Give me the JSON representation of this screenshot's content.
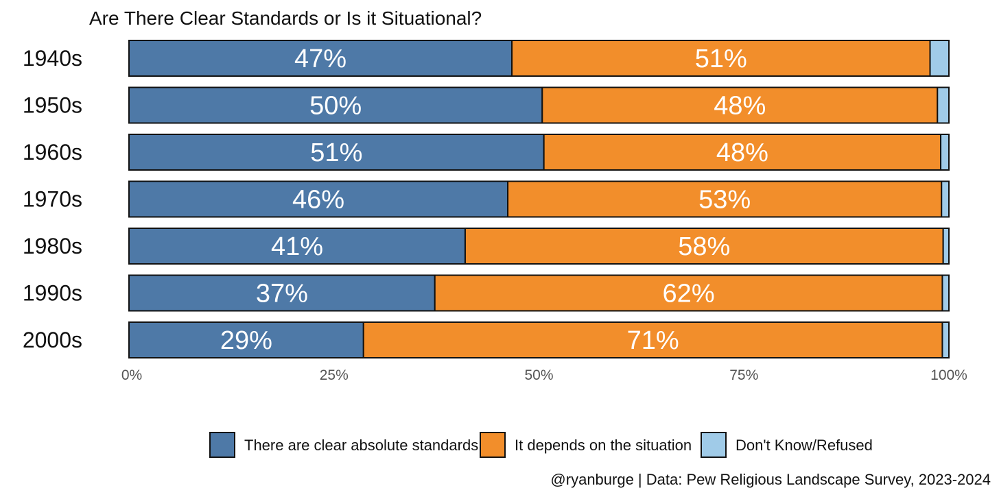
{
  "chart_data": {
    "type": "bar",
    "orientation": "horizontal",
    "stacked": true,
    "title": "Are There Clear Standards or Is it Situational?",
    "categories": [
      "1940s",
      "1950s",
      "1960s",
      "1970s",
      "1980s",
      "1990s",
      "2000s"
    ],
    "series": [
      {
        "name": "There are clear absolute standards",
        "color": "#4e79a7",
        "values": [
          0.467,
          0.504,
          0.506,
          0.462,
          0.41,
          0.373,
          0.286
        ],
        "labels": [
          "47%",
          "50%",
          "51%",
          "46%",
          "41%",
          "37%",
          "29%"
        ]
      },
      {
        "name": "It depends on the situation",
        "color": "#f28e2b",
        "values": [
          0.51,
          0.482,
          0.484,
          0.529,
          0.583,
          0.619,
          0.706
        ],
        "labels": [
          "51%",
          "48%",
          "48%",
          "53%",
          "58%",
          "62%",
          "71%"
        ]
      },
      {
        "name": "Don't Know/Refused",
        "color": "#a0cbe8",
        "values": [
          0.023,
          0.014,
          0.01,
          0.009,
          0.007,
          0.008,
          0.008
        ],
        "labels": [
          "",
          "",
          "",
          "",
          "",
          "",
          ""
        ]
      }
    ],
    "xlim": [
      0,
      1
    ],
    "x_ticks": [
      0,
      0.25,
      0.5,
      0.75,
      1
    ],
    "x_tick_labels": [
      "0%",
      "25%",
      "50%",
      "75%",
      "100%"
    ],
    "xlabel": "",
    "ylabel": "",
    "grid": false,
    "legend_position": "bottom",
    "caption": "@ryanburge | Data: Pew Religious Landscape Survey, 2023-2024"
  }
}
